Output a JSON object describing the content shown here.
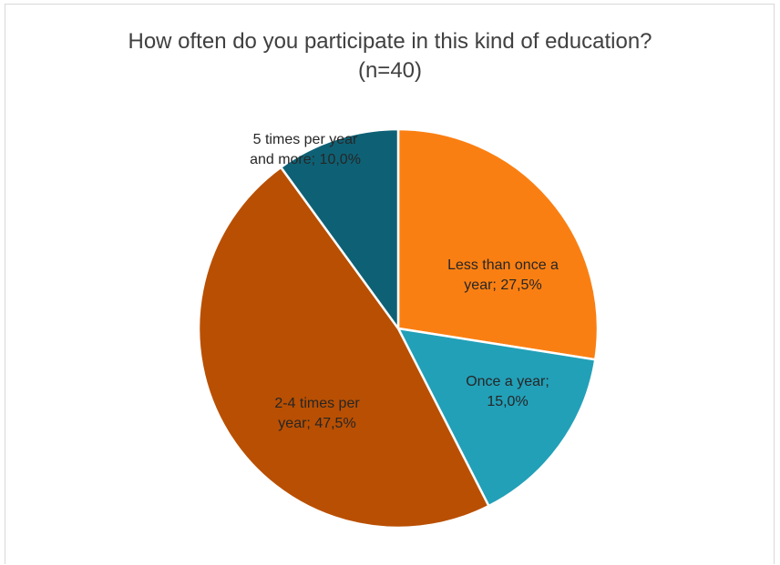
{
  "chart_data": {
    "type": "pie",
    "title": "How often do you participate in this kind of education?",
    "subtitle": "(n=40)",
    "slices": [
      {
        "category": "Less than once a year",
        "value": 27.5,
        "color": "#fa7f12",
        "label_lines": [
          "Less than once a",
          "year; 27,5%"
        ]
      },
      {
        "category": "Once a year",
        "value": 15.0,
        "color": "#22a0b8",
        "label_lines": [
          "Once a year;",
          "15,0%"
        ]
      },
      {
        "category": "2-4 times per year",
        "value": 47.5,
        "color": "#b94f02",
        "label_lines": [
          "2-4 times per",
          "year; 47,5%"
        ]
      },
      {
        "category": "5 times per year and more",
        "value": 10.0,
        "color": "#0e6175",
        "label_lines": [
          "5 times per year",
          "and more; 10,0%"
        ]
      }
    ],
    "legend": "none",
    "start_angle": "12 o'clock, clockwise"
  }
}
